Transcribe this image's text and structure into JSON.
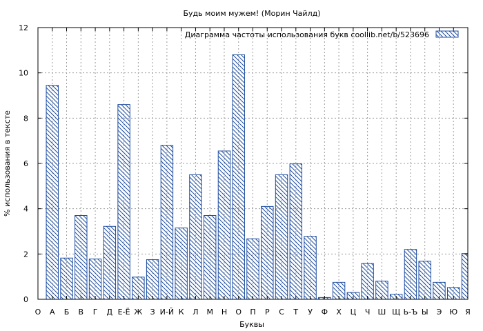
{
  "chart_data": {
    "type": "bar",
    "title": "Будь моим мужем! (Морин Чайлд)",
    "xlabel": "Буквы",
    "ylabel": "% использования в тексте",
    "legend": "Диаграмма частоты использования букв  coollib.net/b/523696",
    "legend_position": "top-right",
    "grid": true,
    "ylim": [
      0,
      12
    ],
    "yticks": [
      0,
      2,
      4,
      6,
      8,
      10,
      12
    ],
    "categories": [
      "О",
      "А",
      "Б",
      "В",
      "Г",
      "Д",
      "Е-Ё",
      "Ж",
      "З",
      "И-Й",
      "К",
      "Л",
      "М",
      "Н",
      "О",
      "П",
      "Р",
      "С",
      "Т",
      "У",
      "Ф",
      "Х",
      "Ц",
      "Ч",
      "Ш",
      "Щ",
      "Ь-Ъ",
      "Ы",
      "Э",
      "Ю",
      "Я"
    ],
    "values": [
      null,
      9.45,
      1.82,
      3.7,
      1.78,
      3.22,
      8.6,
      0.98,
      1.75,
      6.8,
      3.15,
      5.5,
      3.7,
      6.55,
      10.8,
      2.67,
      4.1,
      5.5,
      5.98,
      2.78,
      0.08,
      0.75,
      0.3,
      1.58,
      0.8,
      0.22,
      2.2,
      1.68,
      0.75,
      0.52,
      2.02
    ]
  },
  "colors": {
    "bar_stroke": "#1f4ea0",
    "grid": "#9a9a9a",
    "axis": "#000000"
  }
}
